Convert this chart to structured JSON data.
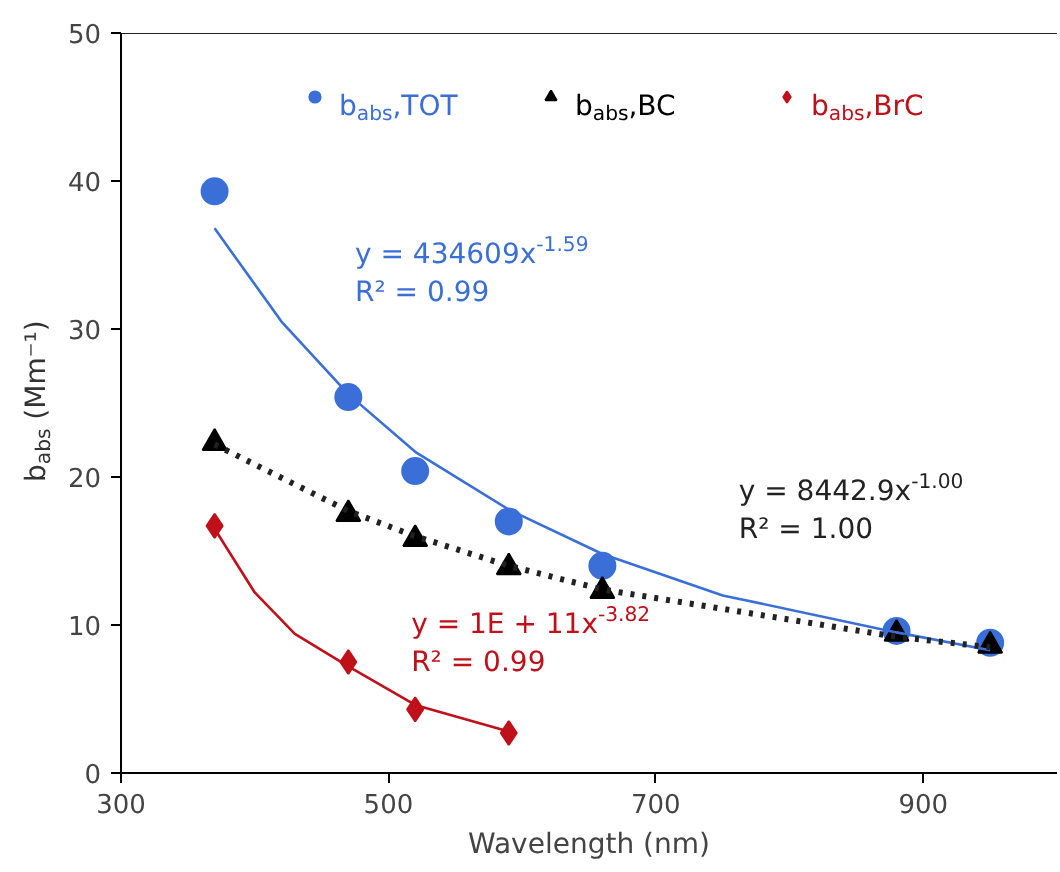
{
  "chart_data": {
    "type": "scatter",
    "xlabel": "Wavelength (nm)",
    "ylabel": "b$_{abs}$ (Mm⁻¹)",
    "xlim": [
      300,
      1000
    ],
    "xticks": [
      300,
      500,
      700,
      900
    ],
    "ylim": [
      0,
      50
    ],
    "yticks": [
      0,
      10,
      20,
      30,
      40,
      50
    ],
    "grid": false,
    "legend": "top",
    "series": [
      {
        "name": "b$_{abs}$,TOT",
        "color": "#3a6fd8",
        "marker": "circle",
        "x": [
          370,
          470,
          520,
          590,
          660,
          880,
          950
        ],
        "values": [
          39.3,
          25.4,
          20.4,
          17.0,
          14.0,
          9.6,
          8.8
        ]
      },
      {
        "name": "b$_{abs}$,BC",
        "color": "#000000",
        "marker": "triangle",
        "x": [
          370,
          470,
          520,
          590,
          660,
          880,
          950
        ],
        "values": [
          22.3,
          17.5,
          15.8,
          13.9,
          12.3,
          9.4,
          8.6
        ]
      },
      {
        "name": "b$_{abs}$,BrC",
        "color": "#c0101a",
        "marker": "diamond",
        "x": [
          370,
          470,
          520,
          590
        ],
        "values": [
          16.7,
          7.5,
          4.3,
          2.7
        ]
      },
      {
        "color": "#3a6fd8",
        "type": "line",
        "line_style": "solid",
        "x": [
          370,
          420,
          470,
          520,
          590,
          660,
          750,
          880,
          950
        ],
        "values": [
          36.8,
          30.5,
          25.6,
          21.7,
          17.8,
          14.8,
          12.0,
          9.5,
          8.3
        ]
      },
      {
        "color": "#222222",
        "type": "line",
        "line_style": "dotted",
        "x": [
          370,
          470,
          520,
          590,
          660,
          880,
          950
        ],
        "values": [
          22.2,
          17.7,
          16.0,
          14.0,
          12.4,
          9.2,
          8.5
        ]
      },
      {
        "color": "#c0101a",
        "type": "line",
        "line_style": "solid",
        "x": [
          370,
          400,
          430,
          470,
          520,
          590
        ],
        "values": [
          16.5,
          12.2,
          9.4,
          7.2,
          4.6,
          2.8
        ]
      }
    ],
    "annotations": [
      "y = 434609x$^{-1.59}$\nR² = 0.99",
      "y = 8442.9x$^{-1.00}$\nR² = 1.00",
      "y = 1E + 11x$^{-3.82}$\nR² = 0.99"
    ]
  }
}
